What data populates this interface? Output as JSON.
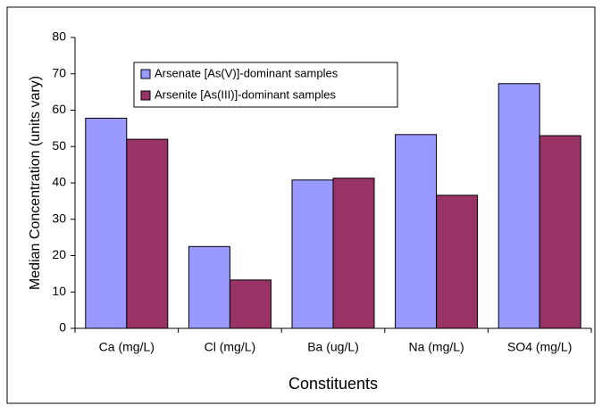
{
  "chart_data": {
    "type": "bar",
    "xlabel": "Constituents",
    "ylabel": "Median Concentration (units vary)",
    "categories": [
      "Ca (mg/L)",
      "Cl (mg/L)",
      "Ba (ug/L)",
      "Na (mg/L)",
      "SO4 (mg/L)"
    ],
    "series": [
      {
        "name": "Arsenate [As(V)]-dominant samples",
        "color": "#9999ff",
        "values": [
          57.8,
          22.5,
          40.8,
          53.3,
          67.3
        ]
      },
      {
        "name": "Arsenite [As(III)]-dominant samples",
        "color": "#993366",
        "values": [
          52,
          13.3,
          41.3,
          36.6,
          53
        ]
      }
    ],
    "ylim": [
      0,
      80
    ],
    "yticks": [
      0,
      10,
      20,
      30,
      40,
      50,
      60,
      70,
      80
    ],
    "grid": false,
    "legend": "top-left"
  }
}
